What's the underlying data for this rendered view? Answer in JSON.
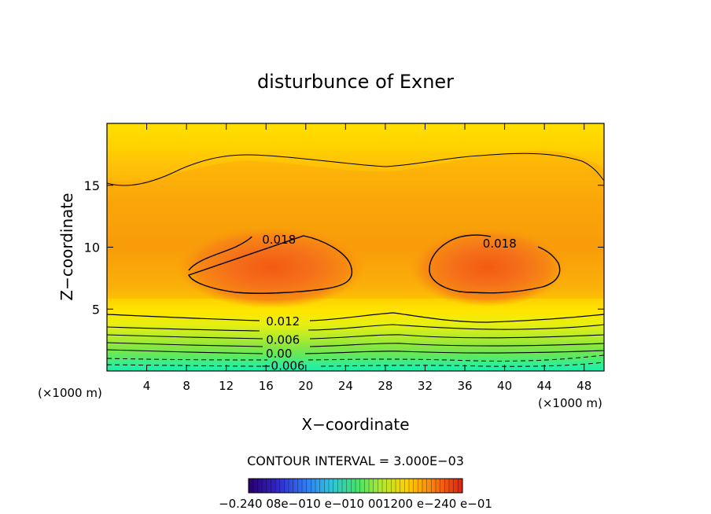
{
  "chart_data": {
    "type": "heatmap",
    "title": "disturbunce of Exner",
    "xlabel": "X−coordinate",
    "ylabel": "Z−coordinate",
    "x_unit_left": "(×1000 m)",
    "x_unit_right": "(×1000 m)",
    "xlim": [
      0,
      50
    ],
    "ylim": [
      0,
      20
    ],
    "x_ticks": [
      4,
      8,
      12,
      16,
      20,
      24,
      28,
      32,
      36,
      40,
      44,
      48
    ],
    "y_ticks": [
      5,
      10,
      15
    ],
    "contour_interval_label": "CONTOUR INTERVAL = 3.000E−03",
    "contour_interval": 0.003,
    "contour_labels": [
      {
        "text": "0.018",
        "x": 17.3,
        "z": 10.6
      },
      {
        "text": "0.018",
        "x": 39.5,
        "z": 10.3
      },
      {
        "text": "0.012",
        "x": 17.7,
        "z": 4.0
      },
      {
        "text": "0.006",
        "x": 17.7,
        "z": 2.5
      },
      {
        "text": "0.00",
        "x": 17.3,
        "z": 1.4
      },
      {
        "text": "−0.006",
        "x": 17.7,
        "z": 0.4
      }
    ],
    "colorbar_labels_text": "−0.240 08e−010 e−010 001200 e−240 e−01",
    "colors": {
      "max_core": "#f35a12",
      "high": "#f8a40a",
      "top": "#ffe000",
      "low_green": "#80e040",
      "min_cyan": "#18f0b0"
    }
  }
}
